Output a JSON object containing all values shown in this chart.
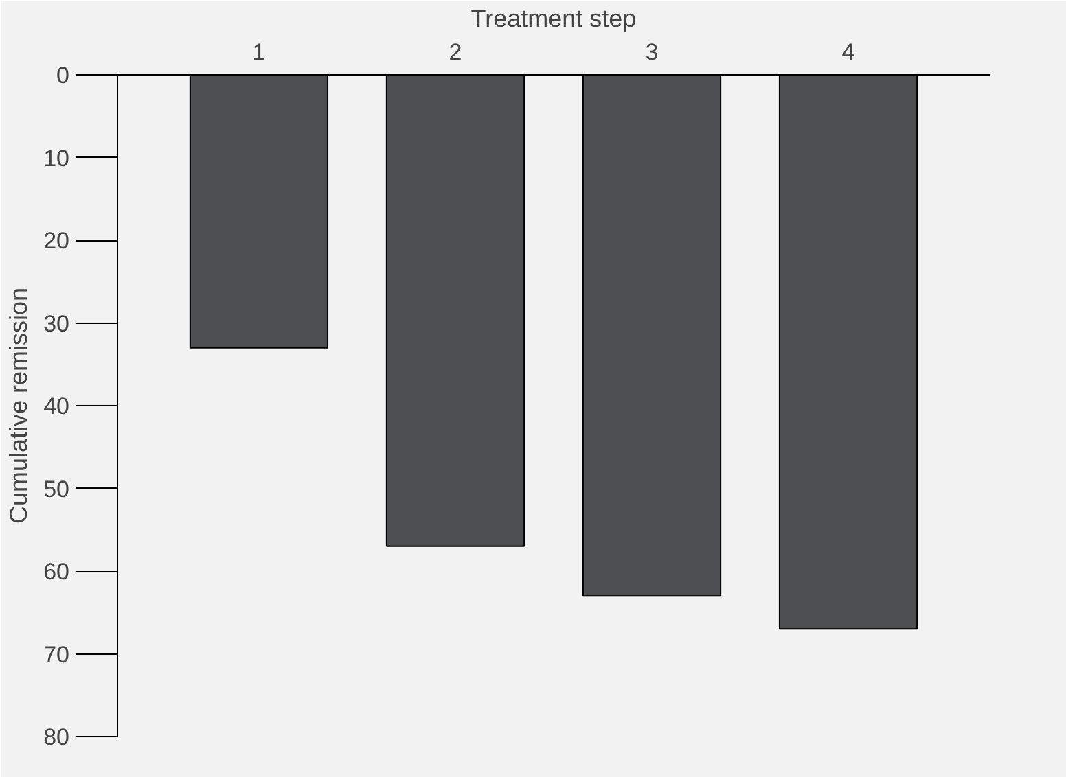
{
  "chart_data": {
    "type": "bar",
    "xlabel": "Treatment step",
    "ylabel": "Cumulative remission",
    "categories": [
      "1",
      "2",
      "3",
      "4"
    ],
    "values": [
      33,
      57,
      63,
      67
    ],
    "color": "#4d4e50",
    "ylim": [
      80,
      0
    ],
    "yticks": [
      0,
      10,
      20,
      30,
      40,
      50,
      60,
      70,
      80
    ],
    "grid": false
  }
}
